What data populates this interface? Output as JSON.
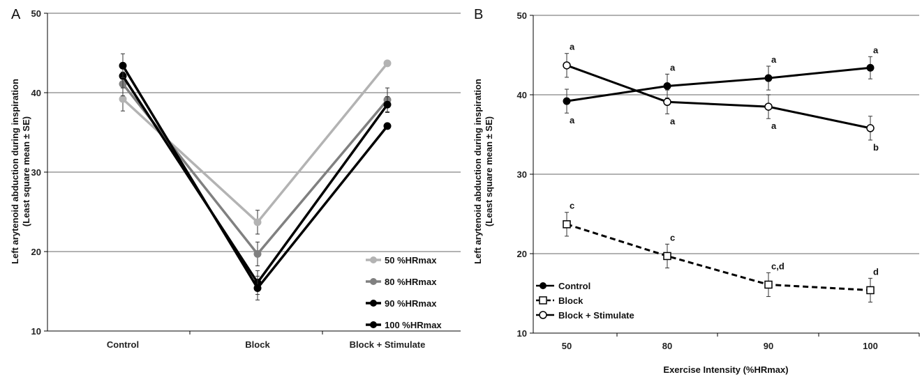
{
  "figure": {
    "panel_labels": [
      "A",
      "B"
    ]
  },
  "chart_data": [
    {
      "type": "line",
      "panel": "A",
      "categories": [
        "Control",
        "Block",
        "Block + Stimulate"
      ],
      "ylabel_line1": "Left arytenoid abduction during inspiration",
      "ylabel_line2": "(Least square mean ± SE)",
      "ylim": [
        10,
        50
      ],
      "yticks": [
        "10",
        "20",
        "30",
        "40",
        "50"
      ],
      "grid": "horizontal",
      "legend_position": "bottom-right",
      "series": [
        {
          "name": "50 %HRmax",
          "color": "#b3b3b3",
          "marker": "filled-circle",
          "values": [
            39.2,
            23.7,
            43.7
          ],
          "se": [
            1.5,
            1.5,
            0
          ]
        },
        {
          "name": "80 %HRmax",
          "color": "#808080",
          "marker": "filled-circle",
          "values": [
            41.1,
            19.7,
            39.1
          ],
          "se": [
            1.5,
            1.5,
            1.5
          ]
        },
        {
          "name": "90 %HRmax",
          "color": "#000000",
          "marker": "filled-circle",
          "values": [
            42.1,
            16.1,
            38.5
          ],
          "se": [
            1.5,
            1.5,
            1.0
          ]
        },
        {
          "name": "100 %HRmax",
          "color": "#000000",
          "marker": "filled-circle",
          "values": [
            43.4,
            15.4,
            35.8
          ],
          "se": [
            1.5,
            1.5,
            0
          ]
        }
      ]
    },
    {
      "type": "line",
      "panel": "B",
      "categories": [
        "50",
        "80",
        "90",
        "100"
      ],
      "xlabel": "Exercise Intensity (%HRmax)",
      "ylabel_line1": "Left arytenoid abduction during inspiration",
      "ylabel_line2": "(Least square mean ± SE)",
      "ylim": [
        10,
        50
      ],
      "yticks": [
        "10",
        "20",
        "30",
        "40",
        "50"
      ],
      "grid": "horizontal",
      "legend_position": "bottom-left",
      "series": [
        {
          "name": "Control",
          "style": "solid",
          "marker": "filled-circle",
          "values": [
            39.2,
            41.1,
            42.1,
            43.4
          ],
          "se": [
            1.5,
            1.5,
            1.5,
            1.4
          ],
          "labels": [
            "a",
            "a",
            "a",
            "a"
          ]
        },
        {
          "name": "Block",
          "style": "dashed",
          "marker": "open-square",
          "values": [
            23.7,
            19.7,
            16.1,
            15.4
          ],
          "se": [
            1.5,
            1.5,
            1.5,
            1.5
          ],
          "labels": [
            "c",
            "c",
            "c,d",
            "d"
          ]
        },
        {
          "name": "Block + Stimulate",
          "style": "solid",
          "marker": "open-circle",
          "values": [
            43.7,
            39.1,
            38.5,
            35.8
          ],
          "se": [
            1.5,
            1.5,
            1.5,
            1.5
          ],
          "labels": [
            "a",
            "a",
            "a",
            "b"
          ]
        }
      ]
    }
  ]
}
